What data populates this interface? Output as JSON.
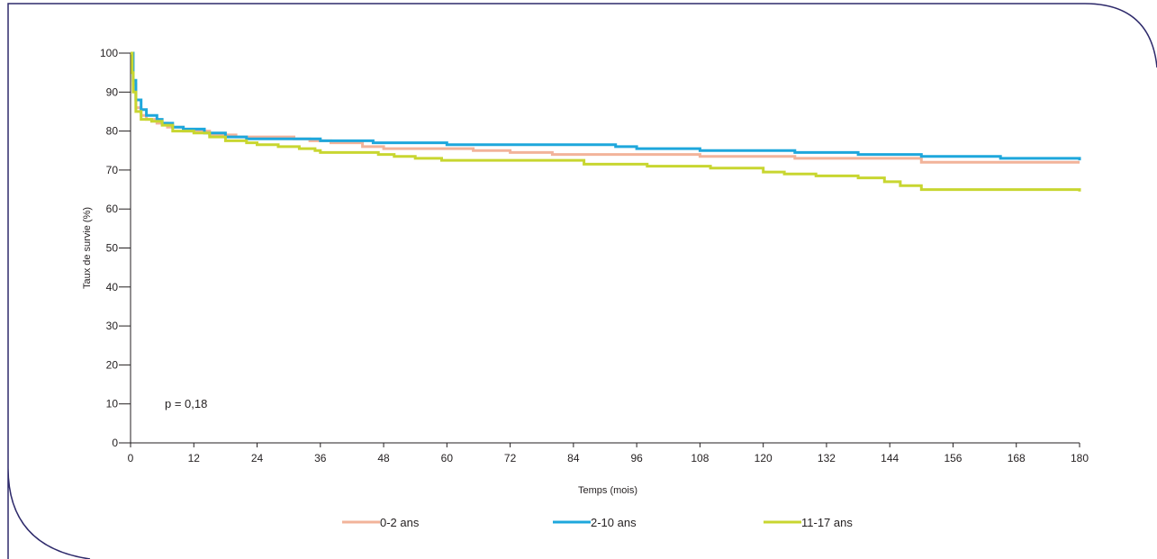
{
  "chart_data": {
    "type": "line",
    "step": true,
    "xlabel": "Temps (mois)",
    "ylabel": "Taux de survie (%)",
    "xlim": [
      0,
      180
    ],
    "ylim": [
      0,
      100
    ],
    "xticks": [
      0,
      12,
      24,
      36,
      48,
      60,
      72,
      84,
      96,
      108,
      120,
      132,
      144,
      156,
      168,
      180
    ],
    "yticks": [
      0,
      10,
      20,
      30,
      40,
      50,
      60,
      70,
      80,
      90,
      100
    ],
    "grid": false,
    "legend_position": "bottom",
    "annotation": "p = 0,18",
    "frame_color": "#2e2a6b",
    "axis_color": "#231f20",
    "series": [
      {
        "name": "0-2 ans",
        "color": "#f2b39a",
        "points": [
          [
            0,
            100
          ],
          [
            0.5,
            92
          ],
          [
            1,
            86
          ],
          [
            2,
            84
          ],
          [
            3,
            83
          ],
          [
            5,
            82
          ],
          [
            7,
            81
          ],
          [
            10,
            80
          ],
          [
            15,
            79
          ],
          [
            20,
            78.5
          ],
          [
            31,
            78
          ],
          [
            34,
            77.5
          ],
          [
            38,
            77
          ],
          [
            44,
            76
          ],
          [
            48,
            75.5
          ],
          [
            55,
            75.5
          ],
          [
            65,
            75
          ],
          [
            72,
            74.5
          ],
          [
            80,
            74
          ],
          [
            108,
            73.5
          ],
          [
            126,
            73
          ],
          [
            150,
            72
          ],
          [
            180,
            72
          ]
        ]
      },
      {
        "name": "2-10 ans",
        "color": "#1ea7dc",
        "points": [
          [
            0,
            100
          ],
          [
            0.5,
            93
          ],
          [
            1,
            88
          ],
          [
            2,
            85.5
          ],
          [
            3,
            84
          ],
          [
            5,
            83
          ],
          [
            6,
            82
          ],
          [
            8,
            81
          ],
          [
            10,
            80.5
          ],
          [
            14,
            79.5
          ],
          [
            18,
            78.5
          ],
          [
            22,
            78
          ],
          [
            36,
            77.5
          ],
          [
            46,
            77
          ],
          [
            60,
            76.5
          ],
          [
            80,
            76.5
          ],
          [
            92,
            76
          ],
          [
            96,
            75.5
          ],
          [
            108,
            75
          ],
          [
            120,
            75
          ],
          [
            126,
            74.5
          ],
          [
            138,
            74
          ],
          [
            150,
            73.5
          ],
          [
            165,
            73
          ],
          [
            180,
            72.5
          ]
        ]
      },
      {
        "name": "11-17 ans",
        "color": "#c8d630",
        "points": [
          [
            0,
            100
          ],
          [
            0.3,
            95
          ],
          [
            0.5,
            90
          ],
          [
            1,
            85
          ],
          [
            2,
            83
          ],
          [
            4,
            82.5
          ],
          [
            6,
            81.5
          ],
          [
            8,
            80
          ],
          [
            12,
            79.5
          ],
          [
            15,
            78.5
          ],
          [
            18,
            77.5
          ],
          [
            22,
            77
          ],
          [
            24,
            76.5
          ],
          [
            28,
            76
          ],
          [
            32,
            75.5
          ],
          [
            35,
            75
          ],
          [
            36,
            74.5
          ],
          [
            47,
            74
          ],
          [
            50,
            73.5
          ],
          [
            54,
            73
          ],
          [
            59,
            72.5
          ],
          [
            72,
            72.5
          ],
          [
            86,
            71.5
          ],
          [
            98,
            71
          ],
          [
            110,
            70.5
          ],
          [
            120,
            69.5
          ],
          [
            124,
            69
          ],
          [
            130,
            68.5
          ],
          [
            138,
            68
          ],
          [
            143,
            67
          ],
          [
            146,
            66
          ],
          [
            150,
            65
          ],
          [
            180,
            64.5
          ]
        ]
      }
    ]
  }
}
